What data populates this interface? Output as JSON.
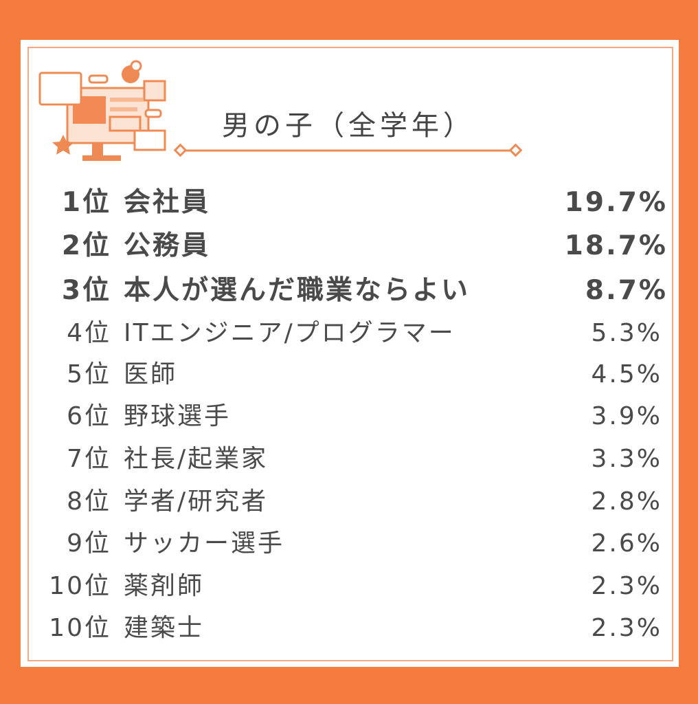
{
  "header": {
    "title": "男の子（全学年）"
  },
  "table": {
    "rows": [
      [
        "1位",
        "会社員",
        "19.7%"
      ],
      [
        "2位",
        "公務員",
        "18.7%"
      ],
      [
        "3位",
        "本人が選んだ職業ならよい",
        "8.7%"
      ],
      [
        "4位",
        "ITエンジニア/プログラマー",
        "5.3%"
      ],
      [
        "5位",
        "医師",
        "4.5%"
      ],
      [
        "6位",
        "野球選手",
        "3.9%"
      ],
      [
        "7位",
        "社長/起業家",
        "3.3%"
      ],
      [
        "8位",
        "学者/研究者",
        "2.8%"
      ],
      [
        "9位",
        "サッカー選手",
        "2.6%"
      ],
      [
        "10位",
        "薬剤師",
        "2.3%"
      ],
      [
        "10位",
        "建築士",
        "2.3%"
      ]
    ]
  }
}
